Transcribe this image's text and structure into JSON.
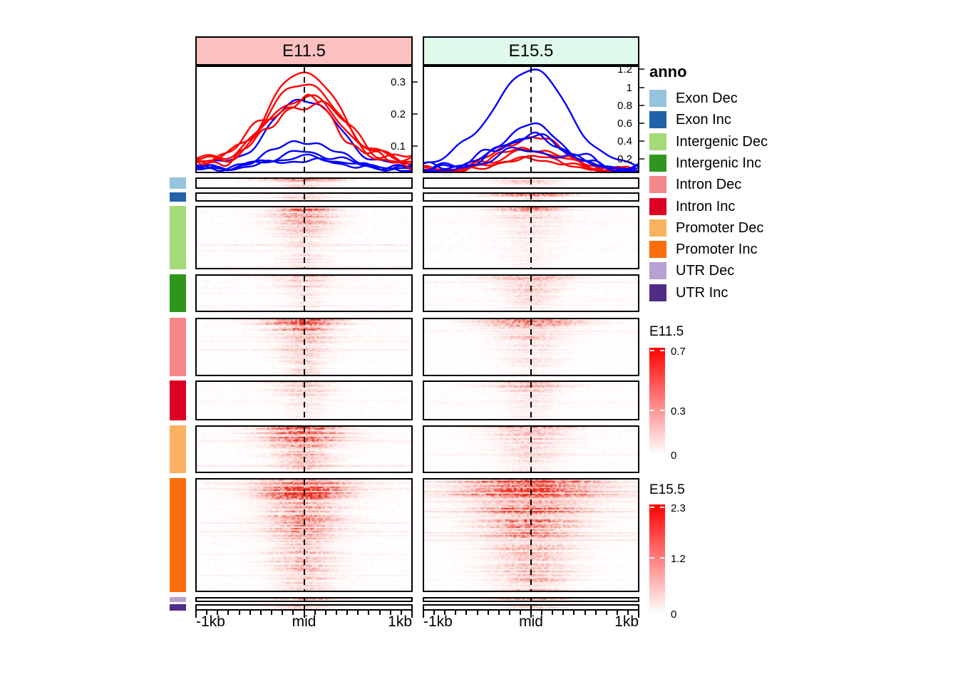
{
  "figure": {
    "background": "#ffffff",
    "description": "Enriched heatmap of signal around region midpoints, split by annotation, for E11.5 and E15.5"
  },
  "panels": [
    {
      "id": "E11.5",
      "header": "E11.5",
      "header_fill": "#FDC0C0"
    },
    {
      "id": "E15.5",
      "header": "E15.5",
      "header_fill": "#DFFAEA"
    }
  ],
  "axis": {
    "tick_labels": [
      "-1kb",
      "mid",
      "1kb"
    ],
    "minor_tick_intervals": 20
  },
  "legend": {
    "title": "anno",
    "items": [
      {
        "label": "Exon Dec",
        "color": "#94C4DE"
      },
      {
        "label": "Exon Inc",
        "color": "#2063A8"
      },
      {
        "label": "Intergenic Dec",
        "color": "#A4DA78"
      },
      {
        "label": "Intergenic Inc",
        "color": "#2F951E"
      },
      {
        "label": "Intron Dec",
        "color": "#F5868C"
      },
      {
        "label": "Intron Inc",
        "color": "#DC0023"
      },
      {
        "label": "Promoter Dec",
        "color": "#FAB262"
      },
      {
        "label": "Promoter Inc",
        "color": "#FA6E0E"
      },
      {
        "label": "UTR Dec",
        "color": "#B8A0D2"
      },
      {
        "label": "UTR Inc",
        "color": "#4F2D87"
      }
    ]
  },
  "colorbars": [
    {
      "title": "E11.5",
      "max": 0.72,
      "low_color": "#FFFFFF",
      "high_color": "#FF0000",
      "ticks": [
        {
          "label": "0.7",
          "value": 0.7
        },
        {
          "label": "0.3",
          "value": 0.3
        },
        {
          "label": "0",
          "value": 0
        }
      ]
    },
    {
      "title": "E15.5",
      "max": 2.36,
      "low_color": "#FFFFFF",
      "high_color": "#FF0000",
      "ticks": [
        {
          "label": "2.3",
          "value": 2.3
        },
        {
          "label": "1.2",
          "value": 1.2
        },
        {
          "label": "0",
          "value": 0
        }
      ]
    }
  ],
  "chart_data": [
    {
      "type": "line",
      "panel": "E11.5",
      "x_ticks": [
        "-1kb",
        "mid",
        "1kb"
      ],
      "ylim": [
        0,
        0.347
      ],
      "y_ticks": [
        {
          "label": "0.3",
          "value": 0.3
        },
        {
          "label": "0.2",
          "value": 0.2
        },
        {
          "label": "0.1",
          "value": 0.1
        }
      ],
      "line_colors": {
        "Dec": "#FF0000",
        "Inc": "#0000FF"
      },
      "series": [
        {
          "group": "Inc",
          "color": "#0000FF",
          "peak": 0.25,
          "base": 0.04,
          "sigma": 0.15,
          "noise": 0.008
        },
        {
          "group": "Inc",
          "color": "#0000FF",
          "peak": 0.12,
          "base": 0.035,
          "sigma": 0.13,
          "noise": 0.009
        },
        {
          "group": "Inc",
          "color": "#0000FF",
          "peak": 0.08,
          "base": 0.03,
          "sigma": 0.16,
          "noise": 0.007
        },
        {
          "group": "Inc",
          "color": "#0000FF",
          "peak": 0.065,
          "base": 0.028,
          "sigma": 0.18,
          "noise": 0.006
        },
        {
          "group": "Inc",
          "color": "#0000FF",
          "peak": 0.055,
          "base": 0.025,
          "sigma": 0.2,
          "noise": 0.006
        },
        {
          "group": "Dec",
          "color": "#FF0000",
          "peak": 0.335,
          "base": 0.055,
          "sigma": 0.155,
          "noise": 0.01
        },
        {
          "group": "Dec",
          "color": "#FF0000",
          "peak": 0.305,
          "base": 0.05,
          "sigma": 0.15,
          "noise": 0.012
        },
        {
          "group": "Dec",
          "color": "#FF0000",
          "peak": 0.255,
          "base": 0.055,
          "sigma": 0.165,
          "noise": 0.01
        },
        {
          "group": "Dec",
          "color": "#FF0000",
          "peak": 0.245,
          "base": 0.048,
          "sigma": 0.15,
          "noise": 0.014
        },
        {
          "group": "Dec",
          "color": "#FF0000",
          "peak": 0.24,
          "base": 0.06,
          "sigma": 0.185,
          "noise": 0.02
        }
      ]
    },
    {
      "type": "line",
      "panel": "E15.5",
      "x_ticks": [
        "-1kb",
        "mid",
        "1kb"
      ],
      "ylim": [
        0,
        1.242
      ],
      "y_ticks": [
        {
          "label": "1.2",
          "value": 1.2
        },
        {
          "label": "1",
          "value": 1.0
        },
        {
          "label": "0.8",
          "value": 0.8
        },
        {
          "label": "0.6",
          "value": 0.6
        },
        {
          "label": "0.4",
          "value": 0.4
        },
        {
          "label": "0.2",
          "value": 0.2
        }
      ],
      "line_colors": {
        "Dec": "#FF0000",
        "Inc": "#0000FF"
      },
      "series": [
        {
          "group": "Dec",
          "color": "#FF0000",
          "peak": 0.45,
          "base": 0.08,
          "sigma": 0.14,
          "noise": 0.03
        },
        {
          "group": "Dec",
          "color": "#FF0000",
          "peak": 0.33,
          "base": 0.07,
          "sigma": 0.15,
          "noise": 0.03
        },
        {
          "group": "Dec",
          "color": "#FF0000",
          "peak": 0.29,
          "base": 0.07,
          "sigma": 0.16,
          "noise": 0.025
        },
        {
          "group": "Dec",
          "color": "#FF0000",
          "peak": 0.22,
          "base": 0.06,
          "sigma": 0.16,
          "noise": 0.02
        },
        {
          "group": "Dec",
          "color": "#FF0000",
          "peak": 0.2,
          "base": 0.055,
          "sigma": 0.17,
          "noise": 0.02
        },
        {
          "group": "Inc",
          "color": "#0000FF",
          "peak": 1.21,
          "base": 0.13,
          "sigma": 0.165,
          "noise": 0.02,
          "bumps": [
            {
              "x": 0.18,
              "h": 0.13,
              "w": 0.045
            }
          ]
        },
        {
          "group": "Inc",
          "color": "#0000FF",
          "peak": 0.58,
          "base": 0.08,
          "sigma": 0.14,
          "noise": 0.02
        },
        {
          "group": "Inc",
          "color": "#0000FF",
          "peak": 0.46,
          "base": 0.09,
          "sigma": 0.15,
          "noise": 0.03
        },
        {
          "group": "Inc",
          "color": "#0000FF",
          "peak": 0.44,
          "base": 0.1,
          "sigma": 0.17,
          "noise": 0.04
        },
        {
          "group": "Inc",
          "color": "#0000FF",
          "peak": 0.3,
          "base": 0.08,
          "sigma": 0.18,
          "noise": 0.04
        }
      ]
    },
    {
      "type": "heatmap",
      "palette": {
        "low": "#FFFFFF",
        "high": "#FF0000"
      },
      "center_line": "dashed at mid",
      "sorting": "rows sorted by decreasing enrichment within each annotation block",
      "blocks": [
        {
          "anno": "Exon Dec",
          "sidebar_color": "#94C4DE",
          "E11.5": {
            "intensity": 0.55,
            "decay": 2.0,
            "spread": 0.1
          },
          "E15.5": {
            "intensity": 0.3,
            "decay": 1.5,
            "spread": 0.1
          }
        },
        {
          "anno": "Exon Inc",
          "sidebar_color": "#2063A8",
          "E11.5": {
            "intensity": 0.35,
            "decay": 1.5,
            "spread": 0.09
          },
          "E15.5": {
            "intensity": 0.6,
            "decay": 4.0,
            "spread": 0.1
          }
        },
        {
          "anno": "Intergenic Dec",
          "sidebar_color": "#A4DA78",
          "E11.5": {
            "intensity": 1.0,
            "decay": 6.0,
            "spread": 0.085
          },
          "E15.5": {
            "intensity": 0.45,
            "decay": 6.0,
            "spread": 0.1
          }
        },
        {
          "anno": "Intergenic Inc",
          "sidebar_color": "#2F951E",
          "E11.5": {
            "intensity": 0.4,
            "decay": 3.5,
            "spread": 0.08
          },
          "E15.5": {
            "intensity": 0.65,
            "decay": 4.0,
            "spread": 0.1
          }
        },
        {
          "anno": "Intron Dec",
          "sidebar_color": "#F5868C",
          "E11.5": {
            "intensity": 0.95,
            "decay": 4.5,
            "spread": 0.09
          },
          "E15.5": {
            "intensity": 0.6,
            "decay": 4.5,
            "spread": 0.11
          }
        },
        {
          "anno": "Intron Inc",
          "sidebar_color": "#DC0023",
          "E11.5": {
            "intensity": 0.3,
            "decay": 2.5,
            "spread": 0.08
          },
          "E15.5": {
            "intensity": 0.35,
            "decay": 2.5,
            "spread": 0.1
          }
        },
        {
          "anno": "Promoter Dec",
          "sidebar_color": "#FAB262",
          "E11.5": {
            "intensity": 1.0,
            "decay": 3.0,
            "spread": 0.11
          },
          "E15.5": {
            "intensity": 0.6,
            "decay": 4.0,
            "spread": 0.11
          }
        },
        {
          "anno": "Promoter Inc",
          "sidebar_color": "#FA6E0E",
          "E11.5": {
            "intensity": 1.0,
            "decay": 2.6,
            "spread": 0.12
          },
          "E15.5": {
            "intensity": 1.0,
            "decay": 2.2,
            "spread": 0.17
          }
        },
        {
          "anno": "UTR Dec",
          "sidebar_color": "#B8A0D2",
          "E11.5": {
            "intensity": 0.5,
            "decay": 1.5,
            "spread": 0.1
          },
          "E15.5": {
            "intensity": 0.35,
            "decay": 1.5,
            "spread": 0.1
          }
        },
        {
          "anno": "UTR Inc",
          "sidebar_color": "#4F2D87",
          "E11.5": {
            "intensity": 0.45,
            "decay": 1.5,
            "spread": 0.1
          },
          "E15.5": {
            "intensity": 0.4,
            "decay": 1.5,
            "spread": 0.1
          }
        }
      ]
    }
  ]
}
